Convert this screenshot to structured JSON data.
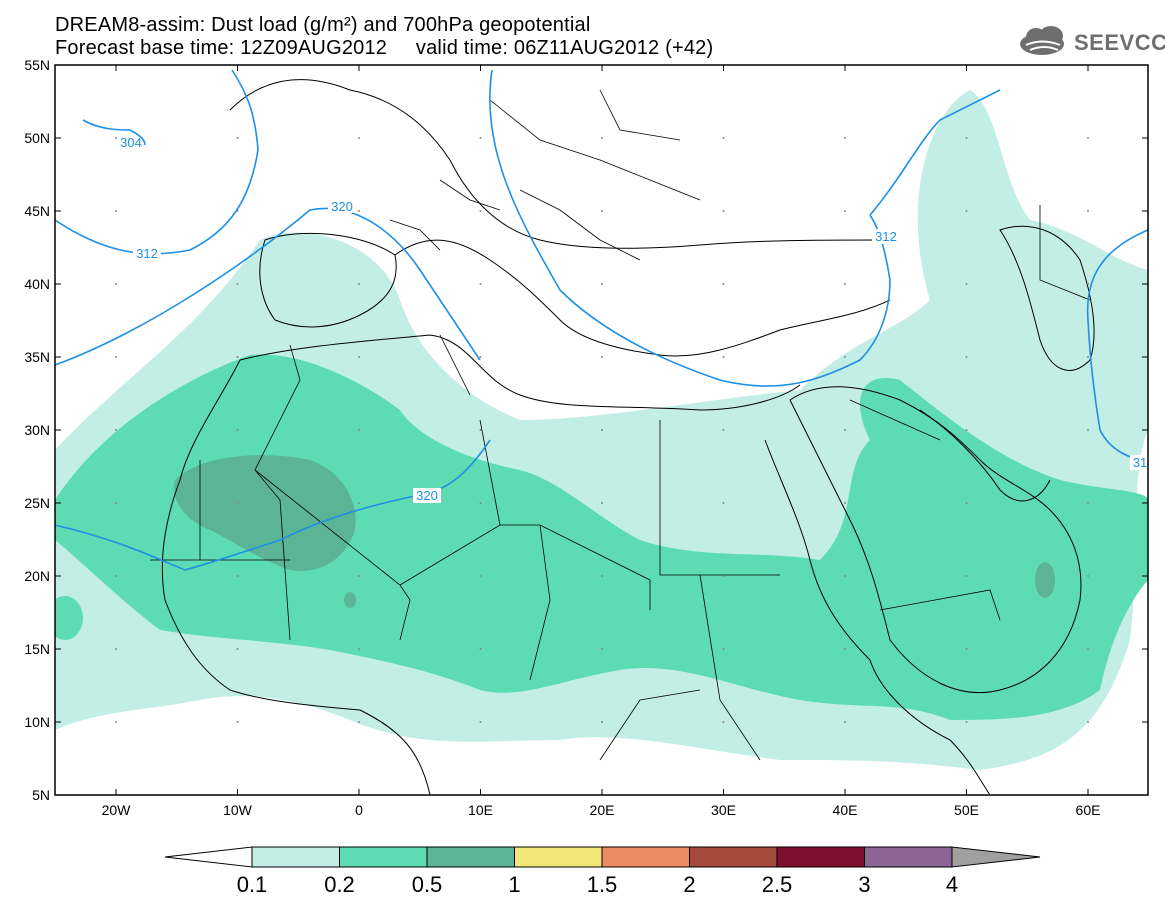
{
  "title": {
    "line1": "DREAM8-assim: Dust load (g/m²) and 700hPa geopotential",
    "line2": "Forecast base time: 12Z09AUG2012     valid time: 06Z11AUG2012 (+42)"
  },
  "logo": {
    "text": "SEEVCCC",
    "icon": "cloud-icon"
  },
  "axes": {
    "lat_labels": [
      "55N",
      "50N",
      "45N",
      "40N",
      "35N",
      "30N",
      "25N",
      "20N",
      "15N",
      "10N",
      "5N"
    ],
    "lon_labels": [
      "20W",
      "10W",
      "0",
      "10E",
      "20E",
      "30E",
      "40E",
      "50E",
      "60E"
    ]
  },
  "contours": {
    "labels": [
      "304",
      "312",
      "320",
      "312",
      "320",
      "31"
    ],
    "color": "#1e90e6"
  },
  "colorbar": {
    "levels": [
      "0.1",
      "0.2",
      "0.5",
      "1",
      "1.5",
      "2",
      "2.5",
      "3",
      "4"
    ],
    "colors": [
      "#c2eee6",
      "#5ddcb4",
      "#5ab495",
      "#f2e678",
      "#eb8c64",
      "#a54b3e",
      "#7d0f2d",
      "#8c6496",
      "#a0a0a0"
    ]
  }
}
